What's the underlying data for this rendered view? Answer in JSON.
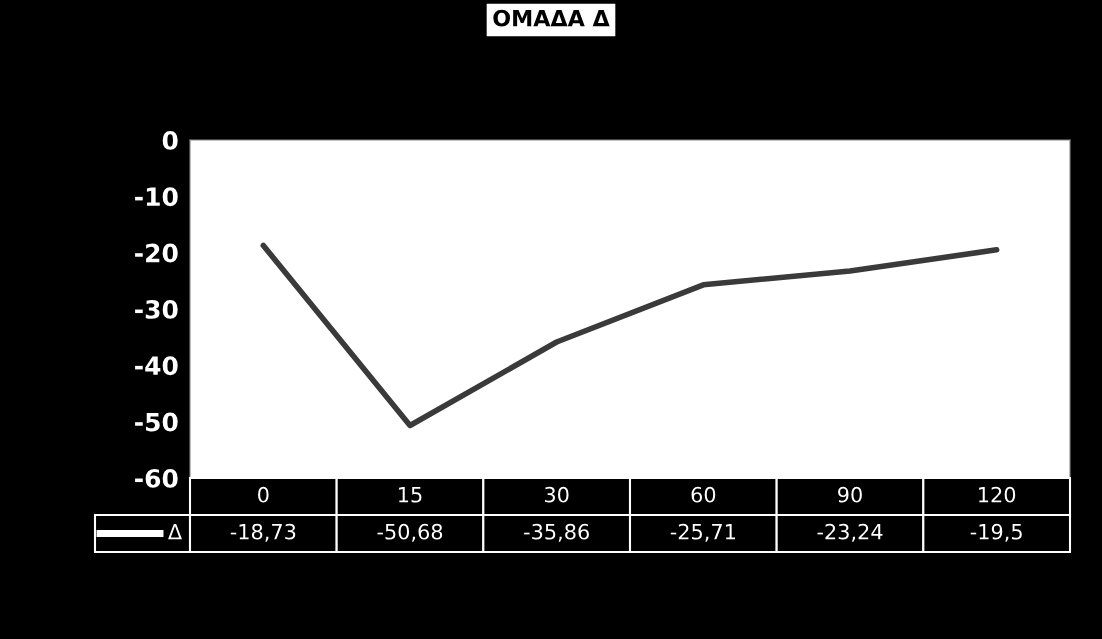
{
  "chart_data": {
    "type": "line",
    "title": "ΟΜΑΔΑ Δ",
    "categories": [
      "0",
      "15",
      "30",
      "60",
      "90",
      "120"
    ],
    "series": [
      {
        "name": "Δ",
        "color": "#3a3a3a",
        "values": [
          -18.73,
          -50.68,
          -35.86,
          -25.71,
          -23.24,
          -19.5
        ],
        "value_labels": [
          "-18,73",
          "-50,68",
          "-35,86",
          "-25,71",
          "-23,24",
          "-19,5"
        ]
      }
    ],
    "ylim": [
      -60,
      0
    ],
    "yticks": [
      0,
      -10,
      -20,
      -30,
      -40,
      -50,
      -60
    ],
    "grid": false,
    "marker": "none",
    "line_style": "solid"
  }
}
